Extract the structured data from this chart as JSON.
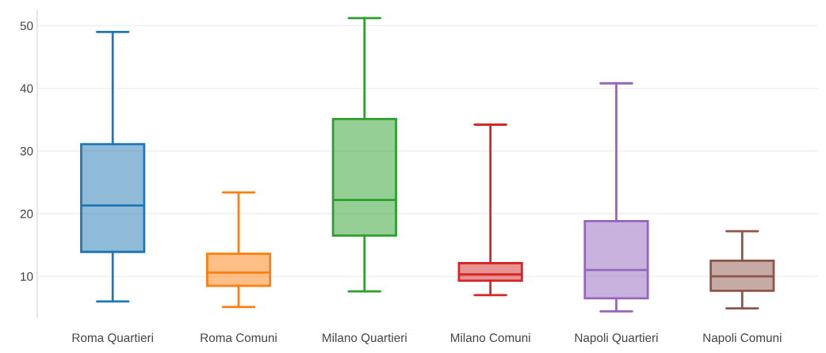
{
  "chart_data": {
    "type": "box",
    "categories": [
      "Roma Quartieri",
      "Roma Comuni",
      "Milano Quartieri",
      "Milano Comuni",
      "Napoli Quartieri",
      "Napoli Comuni"
    ],
    "colors": [
      "#1f77b4",
      "#ff7f0e",
      "#2ca02c",
      "#d62728",
      "#9467bd",
      "#8c564b"
    ],
    "boxes": [
      {
        "low": 6.0,
        "q1": 13.9,
        "median": 21.3,
        "q3": 31.1,
        "high": 49.0
      },
      {
        "low": 5.1,
        "q1": 8.5,
        "median": 10.6,
        "q3": 13.6,
        "high": 23.4
      },
      {
        "low": 7.6,
        "q1": 16.5,
        "median": 22.2,
        "q3": 35.1,
        "high": 51.2
      },
      {
        "low": 7.0,
        "q1": 9.3,
        "median": 10.3,
        "q3": 12.1,
        "high": 34.2
      },
      {
        "low": 4.4,
        "q1": 6.5,
        "median": 11.0,
        "q3": 18.8,
        "high": 40.8
      },
      {
        "low": 4.9,
        "q1": 7.7,
        "median": 10.0,
        "q3": 12.5,
        "high": 17.2
      }
    ],
    "ylim": [
      3.4,
      52.4
    ],
    "yticks": [
      10,
      20,
      30,
      40,
      50
    ],
    "grid": "y"
  }
}
